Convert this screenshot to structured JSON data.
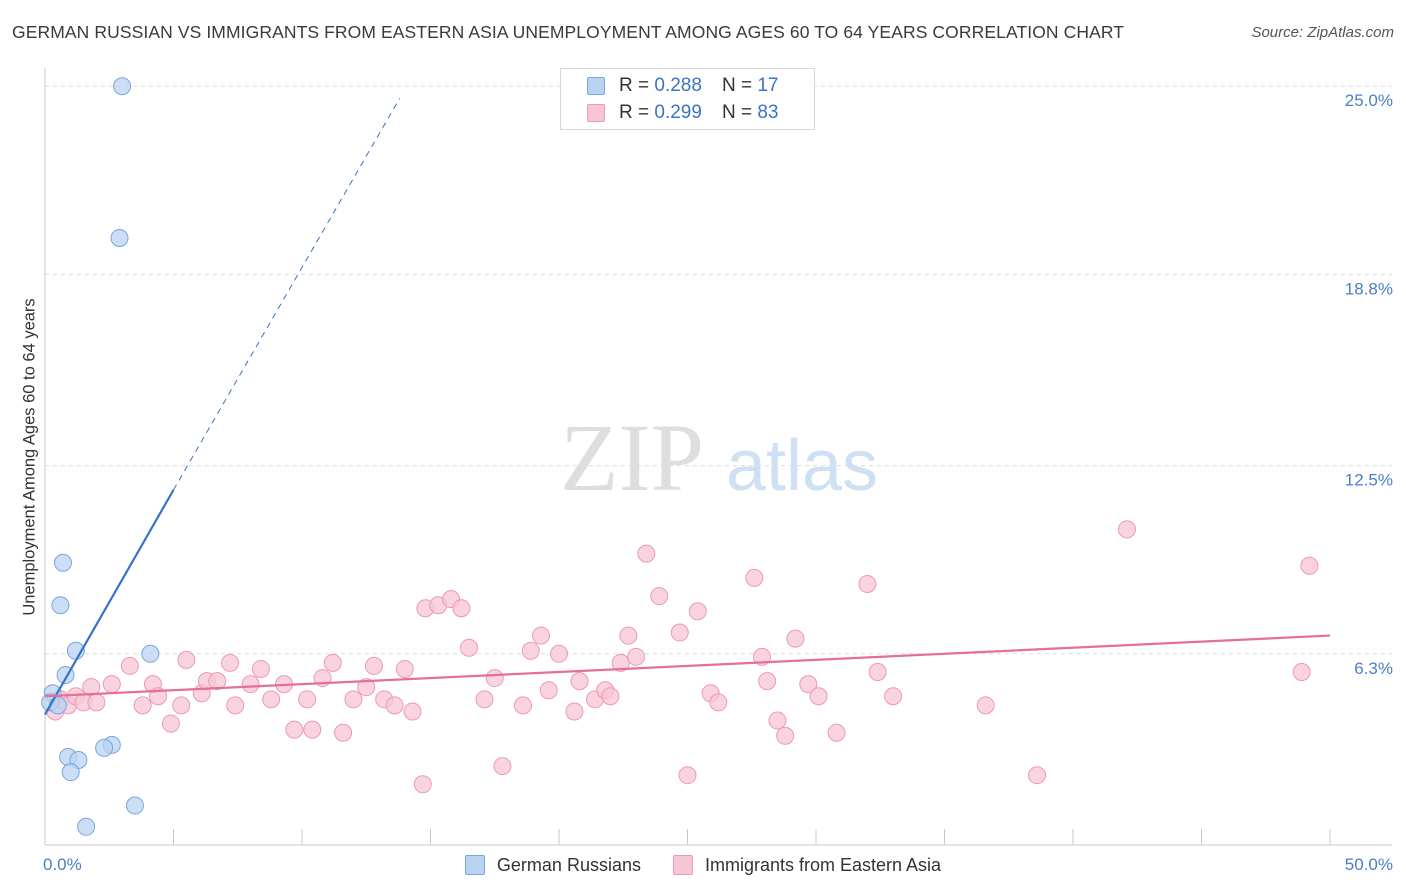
{
  "title": "GERMAN RUSSIAN VS IMMIGRANTS FROM EASTERN ASIA UNEMPLOYMENT AMONG AGES 60 TO 64 YEARS CORRELATION CHART",
  "source": "Source: ZipAtlas.com",
  "watermark": {
    "zip": "ZIP",
    "atlas": "atlas"
  },
  "colors": {
    "blue_fill": "#b9d3f2",
    "blue_stroke": "#7aa6dc",
    "blue_line": "#3572c9",
    "pink_fill": "#f7c6d4",
    "pink_stroke": "#ec9ab3",
    "pink_line": "#e56f96",
    "tick_text": "#4a7fc8",
    "grid": "#dcdcdc"
  },
  "legend_top": [
    {
      "r_label": "R = ",
      "r_value": "0.288",
      "n_label": "N = ",
      "n_value": "17"
    },
    {
      "r_label": "R = ",
      "r_value": "0.299",
      "n_label": "N = ",
      "n_value": "83"
    }
  ],
  "chart_data": {
    "type": "scatter",
    "title": "GERMAN RUSSIAN VS IMMIGRANTS FROM EASTERN ASIA UNEMPLOYMENT AMONG AGES 60 TO 64 YEARS CORRELATION CHART",
    "xlabel": "",
    "ylabel": "Unemployment Among Ages 60 to 64 years",
    "xlim": [
      0,
      50
    ],
    "ylim": [
      0,
      25.6
    ],
    "x_tick_labels": [
      "0.0%",
      "50.0%"
    ],
    "y_ticks": [
      {
        "value": 25.0,
        "label": "25.0%"
      },
      {
        "value": 18.8,
        "label": "18.8%"
      },
      {
        "value": 12.5,
        "label": "12.5%"
      },
      {
        "value": 6.3,
        "label": "6.3%"
      }
    ],
    "grid": true,
    "legend_position": "bottom",
    "series": [
      {
        "name": "German Russians",
        "color": "#b9d3f2",
        "points": [
          [
            3.0,
            25.0
          ],
          [
            2.9,
            20.0
          ],
          [
            0.7,
            9.3
          ],
          [
            0.6,
            7.9
          ],
          [
            1.2,
            6.4
          ],
          [
            4.1,
            6.3
          ],
          [
            0.8,
            5.6
          ],
          [
            0.3,
            5.0
          ],
          [
            0.2,
            4.7
          ],
          [
            0.5,
            4.6
          ],
          [
            2.6,
            3.3
          ],
          [
            2.3,
            3.2
          ],
          [
            0.9,
            2.9
          ],
          [
            1.3,
            2.8
          ],
          [
            1.0,
            2.4
          ],
          [
            3.5,
            1.3
          ],
          [
            1.6,
            0.6
          ]
        ],
        "trend": {
          "x": [
            0,
            5
          ],
          "y": [
            4.3,
            11.7
          ],
          "dashed_to": {
            "x": 13.8,
            "y": 24.6
          }
        }
      },
      {
        "name": "Immigrants from Eastern Asia",
        "color": "#f7c6d4",
        "points": [
          [
            0.4,
            4.4
          ],
          [
            0.6,
            4.8
          ],
          [
            0.9,
            4.6
          ],
          [
            1.2,
            4.9
          ],
          [
            1.5,
            4.7
          ],
          [
            1.8,
            5.2
          ],
          [
            2.0,
            4.7
          ],
          [
            2.6,
            5.3
          ],
          [
            3.3,
            5.9
          ],
          [
            3.8,
            4.6
          ],
          [
            4.2,
            5.3
          ],
          [
            4.4,
            4.9
          ],
          [
            4.9,
            4.0
          ],
          [
            5.3,
            4.6
          ],
          [
            5.5,
            6.1
          ],
          [
            6.1,
            5.0
          ],
          [
            6.3,
            5.4
          ],
          [
            6.7,
            5.4
          ],
          [
            7.2,
            6.0
          ],
          [
            7.4,
            4.6
          ],
          [
            8.0,
            5.3
          ],
          [
            8.4,
            5.8
          ],
          [
            8.8,
            4.8
          ],
          [
            9.3,
            5.3
          ],
          [
            9.7,
            3.8
          ],
          [
            10.2,
            4.8
          ],
          [
            10.4,
            3.8
          ],
          [
            10.8,
            5.5
          ],
          [
            11.2,
            6.0
          ],
          [
            11.6,
            3.7
          ],
          [
            12.0,
            4.8
          ],
          [
            12.5,
            5.2
          ],
          [
            12.8,
            5.9
          ],
          [
            13.2,
            4.8
          ],
          [
            13.6,
            4.6
          ],
          [
            14.0,
            5.8
          ],
          [
            14.3,
            4.4
          ],
          [
            14.7,
            2.0
          ],
          [
            14.8,
            7.8
          ],
          [
            15.3,
            7.9
          ],
          [
            15.8,
            8.1
          ],
          [
            16.2,
            7.8
          ],
          [
            16.5,
            6.5
          ],
          [
            17.1,
            4.8
          ],
          [
            17.5,
            5.5
          ],
          [
            17.8,
            2.6
          ],
          [
            18.6,
            4.6
          ],
          [
            18.9,
            6.4
          ],
          [
            19.3,
            6.9
          ],
          [
            19.6,
            5.1
          ],
          [
            20.0,
            6.3
          ],
          [
            20.6,
            4.4
          ],
          [
            20.8,
            5.4
          ],
          [
            21.4,
            4.8
          ],
          [
            21.8,
            5.1
          ],
          [
            22.0,
            4.9
          ],
          [
            22.4,
            6.0
          ],
          [
            22.7,
            6.9
          ],
          [
            23.0,
            6.2
          ],
          [
            23.4,
            9.6
          ],
          [
            23.9,
            8.2
          ],
          [
            24.7,
            7.0
          ],
          [
            25.0,
            2.3
          ],
          [
            25.4,
            7.7
          ],
          [
            25.9,
            5.0
          ],
          [
            26.2,
            4.7
          ],
          [
            27.6,
            8.8
          ],
          [
            27.9,
            6.2
          ],
          [
            28.1,
            5.4
          ],
          [
            28.5,
            4.1
          ],
          [
            28.8,
            3.6
          ],
          [
            29.2,
            6.8
          ],
          [
            29.7,
            5.3
          ],
          [
            30.1,
            4.9
          ],
          [
            30.8,
            3.7
          ],
          [
            32.0,
            8.6
          ],
          [
            32.4,
            5.7
          ],
          [
            33.0,
            4.9
          ],
          [
            36.6,
            4.6
          ],
          [
            38.6,
            2.3
          ],
          [
            42.1,
            10.4
          ],
          [
            48.9,
            5.7
          ],
          [
            49.2,
            9.2
          ]
        ],
        "trend": {
          "x": [
            0,
            50
          ],
          "y": [
            4.9,
            6.9
          ]
        }
      }
    ]
  }
}
